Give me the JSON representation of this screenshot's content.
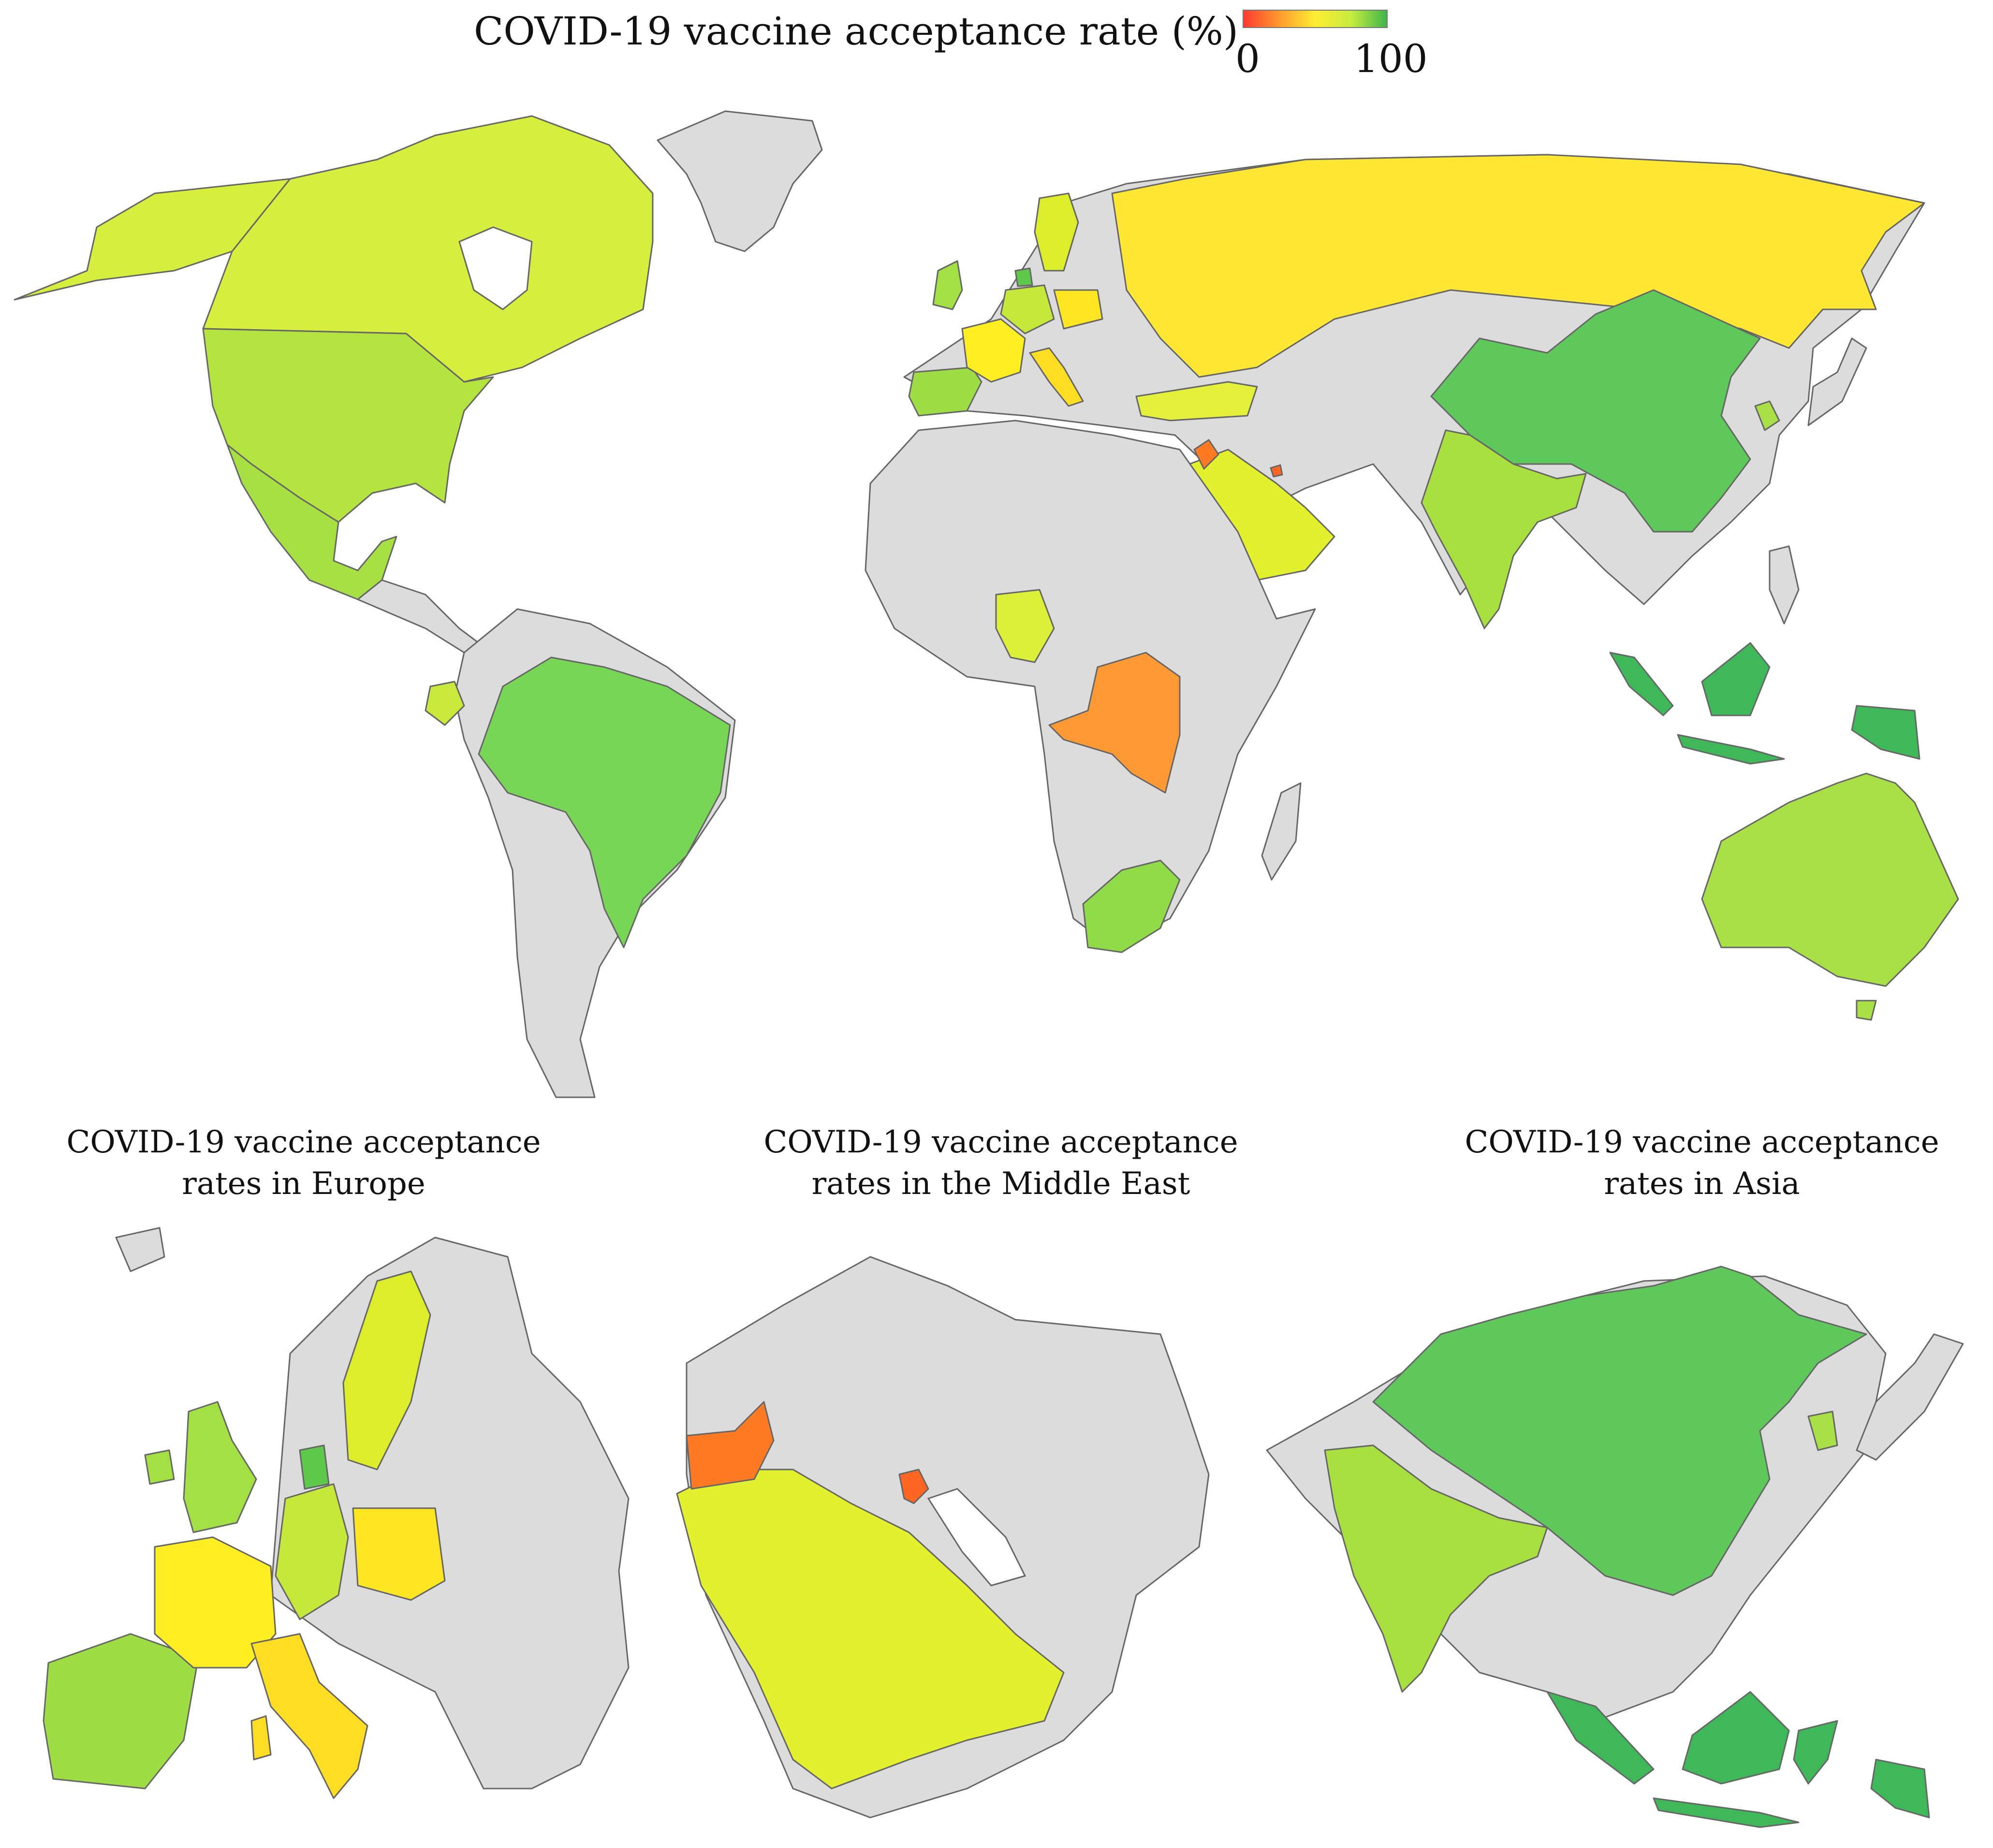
{
  "title": "COVID-19 vaccine acceptance rate (%)",
  "legend": {
    "min_label": "0",
    "max_label": "100",
    "colors": [
      "#ff3b30",
      "#ff9a2e",
      "#ffee33",
      "#c7ec3f",
      "#3fb64b"
    ]
  },
  "colors": {
    "no_data": "#dcdcdc",
    "border": "#666666",
    "water": "#ffffff"
  },
  "panels": {
    "europe_title_line1": "COVID-19 vaccine acceptance",
    "europe_title_line2": "rates in Europe",
    "mideast_title_line1": "COVID-19 vaccine acceptance",
    "mideast_title_line2": "rates in the Middle East",
    "asia_title_line1": "COVID-19 vaccine acceptance",
    "asia_title_line2": "rates in Asia"
  },
  "countries": [
    {
      "name": "Canada",
      "color": "#d6ee3d"
    },
    {
      "name": "United States",
      "color": "#b3e440"
    },
    {
      "name": "Mexico",
      "color": "#a7e043"
    },
    {
      "name": "Brazil",
      "color": "#77d656"
    },
    {
      "name": "Ecuador",
      "color": "#c9e83c"
    },
    {
      "name": "United Kingdom",
      "color": "#a3e044"
    },
    {
      "name": "France",
      "color": "#ffee22"
    },
    {
      "name": "Spain",
      "color": "#9ede44"
    },
    {
      "name": "Italy",
      "color": "#ffdd22"
    },
    {
      "name": "Germany",
      "color": "#c6e83a"
    },
    {
      "name": "Poland",
      "color": "#ffe622"
    },
    {
      "name": "Sweden",
      "color": "#dcee2a"
    },
    {
      "name": "Denmark",
      "color": "#5ec84a"
    },
    {
      "name": "Russia",
      "color": "#ffe733"
    },
    {
      "name": "Turkey",
      "color": "#e5f03a"
    },
    {
      "name": "Saudi Arabia",
      "color": "#e2f02e"
    },
    {
      "name": "Jordan",
      "color": "#ff7a22"
    },
    {
      "name": "Kuwait",
      "color": "#ff6622"
    },
    {
      "name": "Nigeria",
      "color": "#dcf03a"
    },
    {
      "name": "DR Congo",
      "color": "#ff9933"
    },
    {
      "name": "South Africa",
      "color": "#8fdb48"
    },
    {
      "name": "India",
      "color": "#a8e040"
    },
    {
      "name": "China",
      "color": "#5fc85a"
    },
    {
      "name": "South Korea",
      "color": "#a8e045"
    },
    {
      "name": "Indonesia",
      "color": "#3fb85a"
    },
    {
      "name": "Australia",
      "color": "#a8e045"
    }
  ]
}
